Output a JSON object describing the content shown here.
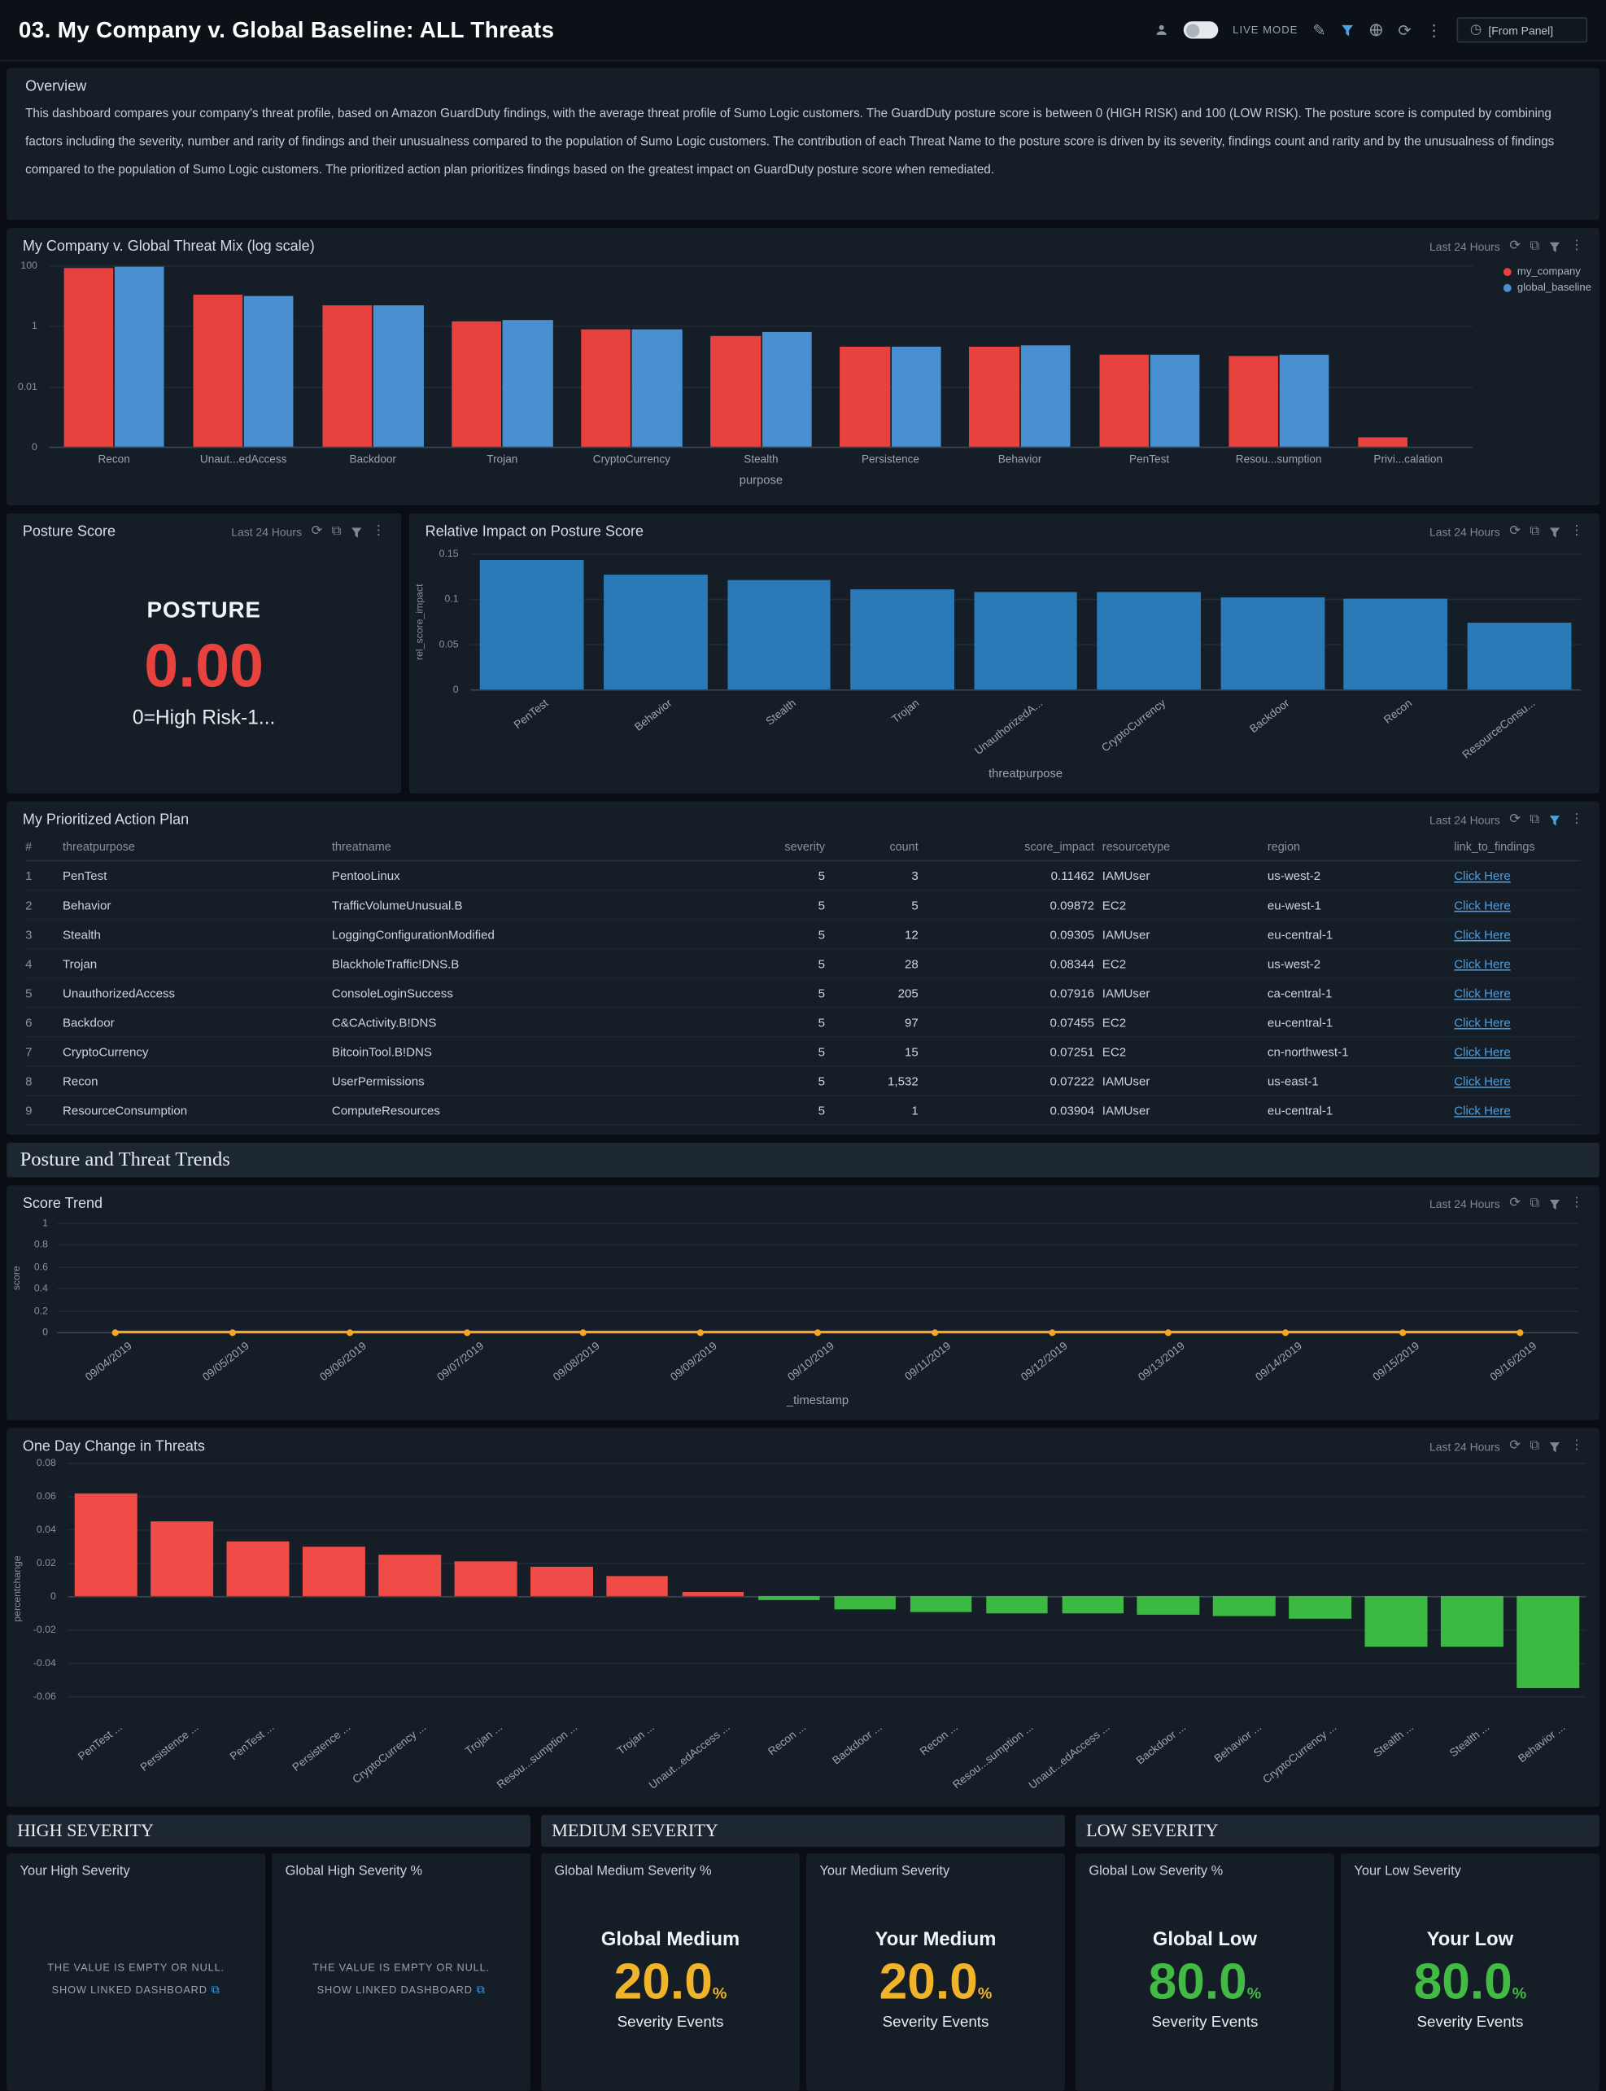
{
  "header": {
    "title": "03. My Company v. Global Baseline: ALL Threats",
    "live_mode_label": "LIVE MODE",
    "panel_selector": "[From Panel]"
  },
  "colors": {
    "my_company": "#e8423e",
    "global_baseline": "#4a8fd0",
    "impact_bar": "#2a7ab8",
    "trend_line": "#f5a62a",
    "positive_change": "#ef4c48",
    "negative_change": "#3cb942",
    "medium_value": "#f0b42a",
    "low_value": "#42bb44",
    "posture_value": "#e8423e",
    "link": "#4f9fdf"
  },
  "panels": {
    "overview": {
      "title": "Overview",
      "description": "This dashboard compares your company's threat profile, based on Amazon GuardDuty findings, with the average threat profile of Sumo Logic customers. The GuardDuty posture score is between 0 (HIGH RISK) and 100 (LOW RISK). The posture score is computed by combining factors including the severity, number and rarity of findings and their unusualness compared to the population of Sumo Logic customers. The contribution of each Threat Name to the posture score is driven by its severity, findings count and rarity and by the unusualness of findings compared to the population of Sumo Logic customers. The prioritized action plan prioritizes findings based on the greatest impact on GuardDuty posture score when remediated."
    },
    "threat_mix": {
      "title": "My Company v. Global Threat Mix (log scale)",
      "time_range": "Last 24 Hours"
    },
    "posture_score": {
      "title": "Posture Score",
      "time_range": "Last 24 Hours",
      "label": "POSTURE",
      "value": "0.00",
      "sub": "0=High Risk-1..."
    },
    "relative_impact": {
      "title": "Relative Impact on Posture Score",
      "time_range": "Last 24 Hours"
    },
    "action_plan": {
      "title": "My Prioritized Action Plan",
      "time_range": "Last 24 Hours",
      "columns": [
        "#",
        "threatpurpose",
        "threatname",
        "severity",
        "count",
        "score_impact",
        "resourcetype",
        "region",
        "link_to_findings"
      ],
      "rows": [
        [
          "1",
          "PenTest",
          "PentooLinux",
          "5",
          "3",
          "0.11462",
          "IAMUser",
          "us-west-2",
          "Click Here"
        ],
        [
          "2",
          "Behavior",
          "TrafficVolumeUnusual.B",
          "5",
          "5",
          "0.09872",
          "EC2",
          "eu-west-1",
          "Click Here"
        ],
        [
          "3",
          "Stealth",
          "LoggingConfigurationModified",
          "5",
          "12",
          "0.09305",
          "IAMUser",
          "eu-central-1",
          "Click Here"
        ],
        [
          "4",
          "Trojan",
          "BlackholeTraffic!DNS.B",
          "5",
          "28",
          "0.08344",
          "EC2",
          "us-west-2",
          "Click Here"
        ],
        [
          "5",
          "UnauthorizedAccess",
          "ConsoleLoginSuccess",
          "5",
          "205",
          "0.07916",
          "IAMUser",
          "ca-central-1",
          "Click Here"
        ],
        [
          "6",
          "Backdoor",
          "C&CActivity.B!DNS",
          "5",
          "97",
          "0.07455",
          "EC2",
          "eu-central-1",
          "Click Here"
        ],
        [
          "7",
          "CryptoCurrency",
          "BitcoinTool.B!DNS",
          "5",
          "15",
          "0.07251",
          "EC2",
          "cn-northwest-1",
          "Click Here"
        ],
        [
          "8",
          "Recon",
          "UserPermissions",
          "5",
          "1,532",
          "0.07222",
          "IAMUser",
          "us-east-1",
          "Click Here"
        ],
        [
          "9",
          "ResourceConsumption",
          "ComputeResources",
          "5",
          "1",
          "0.03904",
          "IAMUser",
          "eu-central-1",
          "Click Here"
        ]
      ]
    },
    "trends_band": {
      "title": "Posture and Threat Trends"
    },
    "score_trend": {
      "title": "Score Trend",
      "time_range": "Last 24 Hours"
    },
    "one_day_change": {
      "title": "One Day Change in Threats",
      "time_range": "Last 24 Hours"
    },
    "severity": {
      "high": {
        "section_title": "HIGH SEVERITY",
        "panels": [
          {
            "title": "Your High Severity",
            "empty_line1": "THE VALUE IS EMPTY OR NULL.",
            "empty_line2": "SHOW LINKED DASHBOARD"
          },
          {
            "title": "Global High Severity %",
            "empty_line1": "THE VALUE IS EMPTY OR NULL.",
            "empty_line2": "SHOW LINKED DASHBOARD"
          }
        ]
      },
      "medium": {
        "section_title": "MEDIUM SEVERITY",
        "panels": [
          {
            "title": "Global Medium Severity %",
            "heading": "Global Medium",
            "value": "20.0",
            "unit": "%",
            "sub": "Severity Events",
            "color": "#f0b42a"
          },
          {
            "title": "Your Medium Severity",
            "heading": "Your Medium",
            "value": "20.0",
            "unit": "%",
            "sub": "Severity Events",
            "color": "#f0b42a"
          }
        ]
      },
      "low": {
        "section_title": "LOW SEVERITY",
        "panels": [
          {
            "title": "Global Low Severity %",
            "heading": "Global Low",
            "value": "80.0",
            "unit": "%",
            "sub": "Severity Events",
            "color": "#42bb44"
          },
          {
            "title": "Your Low Severity",
            "heading": "Your Low",
            "value": "80.0",
            "unit": "%",
            "sub": "Severity Events",
            "color": "#42bb44"
          }
        ]
      }
    }
  },
  "chart_data": [
    {
      "id": "threat_mix",
      "type": "bar",
      "scale": "log",
      "title": "My Company v. Global Threat Mix (log scale)",
      "xlabel": "purpose",
      "ylabel": "",
      "yticks": [
        100,
        1,
        0.01,
        0
      ],
      "categories": [
        "Recon",
        "Unaut...edAccess",
        "Backdoor",
        "Trojan",
        "CryptoCurrency",
        "Stealth",
        "Persistence",
        "Behavior",
        "PenTest",
        "Resou...sumption",
        "Privi...calation"
      ],
      "series": [
        {
          "name": "my_company",
          "color": "#e8423e",
          "values": [
            80,
            11,
            5,
            1.4,
            0.8,
            0.45,
            0.2,
            0.2,
            0.11,
            0.1,
            0.0002
          ]
        },
        {
          "name": "global_baseline",
          "color": "#4a8fd0",
          "values": [
            95,
            10,
            5,
            1.5,
            0.8,
            0.6,
            0.2,
            0.22,
            0.11,
            0.11,
            0
          ]
        }
      ],
      "legend_position": "right"
    },
    {
      "id": "relative_impact",
      "type": "bar",
      "title": "Relative Impact on Posture Score",
      "xlabel": "threatpurpose",
      "ylabel": "rel_score_impact",
      "ylim": [
        0,
        0.15
      ],
      "yticks": [
        0.15,
        0.1,
        0.05,
        0
      ],
      "categories": [
        "PenTest",
        "Behavior",
        "Stealth",
        "Trojan",
        "UnauthorizedA...",
        "CryptoCurrency",
        "Backdoor",
        "Recon",
        "ResourceConsu..."
      ],
      "values": [
        0.143,
        0.126,
        0.12,
        0.11,
        0.108,
        0.107,
        0.101,
        0.1,
        0.073
      ],
      "color": "#2a7ab8"
    },
    {
      "id": "score_trend",
      "type": "line",
      "title": "Score Trend",
      "xlabel": "_timestamp",
      "ylabel": "score",
      "ylim": [
        0,
        1
      ],
      "yticks": [
        1,
        0.8,
        0.6,
        0.4,
        0.2,
        0
      ],
      "categories": [
        "09/04/2019",
        "09/05/2019",
        "09/06/2019",
        "09/07/2019",
        "09/08/2019",
        "09/09/2019",
        "09/10/2019",
        "09/11/2019",
        "09/12/2019",
        "09/13/2019",
        "09/14/2019",
        "09/15/2019",
        "09/16/2019"
      ],
      "values": [
        0,
        0,
        0,
        0,
        0,
        0,
        0,
        0,
        0,
        0,
        0,
        0,
        0
      ],
      "color": "#f5a62a"
    },
    {
      "id": "one_day_change",
      "type": "bar",
      "title": "One Day Change in Threats",
      "xlabel": "",
      "ylabel": "percentchange",
      "ylim": [
        -0.07,
        0.08
      ],
      "yticks": [
        0.08,
        0.06,
        0.04,
        0.02,
        0,
        -0.02,
        -0.04,
        -0.06
      ],
      "categories": [
        "PenTest ...",
        "Persistence ...",
        "PenTest ...",
        "Persistence ...",
        "CryptoCurrency ...",
        "Trojan ...",
        "Resou...sumption ...",
        "Trojan ...",
        "Unaut...edAccess ...",
        "Recon ...",
        "Backdoor ...",
        "Recon ...",
        "Resou...sumption ...",
        "Unaut...edAccess ...",
        "Backdoor ...",
        "Behavior ...",
        "CryptoCurrency ...",
        "Stealth ...",
        "Stealth ...",
        "Behavior ..."
      ],
      "values": [
        0.062,
        0.045,
        0.033,
        0.03,
        0.025,
        0.021,
        0.018,
        0.012,
        0.003,
        -0.002,
        -0.008,
        -0.009,
        -0.01,
        -0.01,
        -0.011,
        -0.012,
        -0.013,
        -0.03,
        -0.03,
        -0.055
      ],
      "color_positive": "#ef4c48",
      "color_negative": "#3cb942"
    }
  ]
}
